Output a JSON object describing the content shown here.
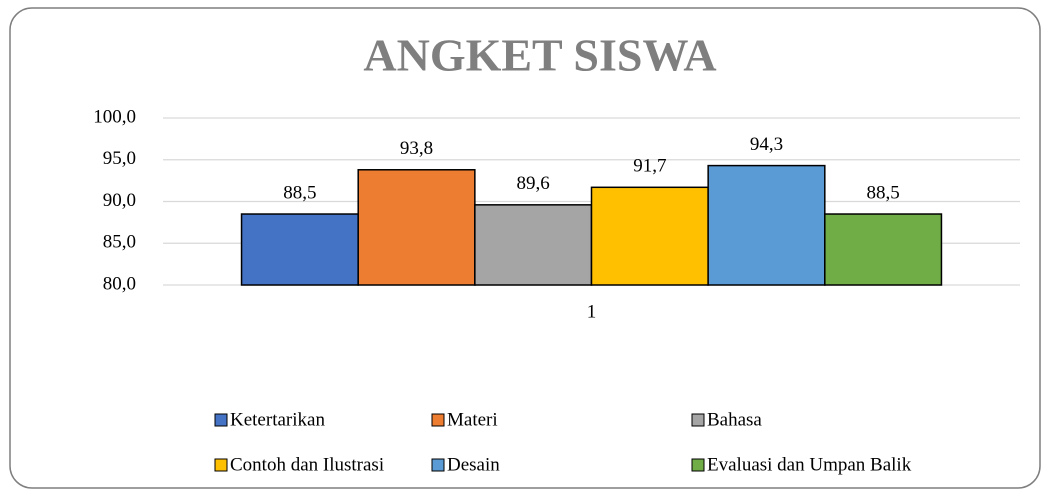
{
  "chart_data": {
    "type": "bar",
    "title": "ANGKET SISWA",
    "categories": [
      "1"
    ],
    "series": [
      {
        "name": "Ketertarikan",
        "color": "#4472c4",
        "values": [
          88.5
        ],
        "value_labels": [
          "88,5"
        ]
      },
      {
        "name": "Materi",
        "color": "#ed7d31",
        "values": [
          93.8
        ],
        "value_labels": [
          "93,8"
        ]
      },
      {
        "name": "Bahasa",
        "color": "#a5a5a5",
        "values": [
          89.6
        ],
        "value_labels": [
          "89,6"
        ]
      },
      {
        "name": "Contoh dan Ilustrasi",
        "color": "#ffc000",
        "values": [
          91.7
        ],
        "value_labels": [
          "91,7"
        ]
      },
      {
        "name": "Desain",
        "color": "#5b9bd5",
        "values": [
          94.3
        ],
        "value_labels": [
          "94,3"
        ]
      },
      {
        "name": "Evaluasi dan Umpan Balik",
        "color": "#70ad47",
        "values": [
          88.5
        ],
        "value_labels": [
          "88,5"
        ]
      }
    ],
    "ylim": [
      80,
      100
    ],
    "yticks": [
      {
        "value": 80,
        "label": "80,0"
      },
      {
        "value": 85,
        "label": "85,0"
      },
      {
        "value": 90,
        "label": "90,0"
      },
      {
        "value": 95,
        "label": "95,0"
      },
      {
        "value": 100,
        "label": "100,0"
      }
    ],
    "grid": true,
    "legend": "bottom"
  }
}
